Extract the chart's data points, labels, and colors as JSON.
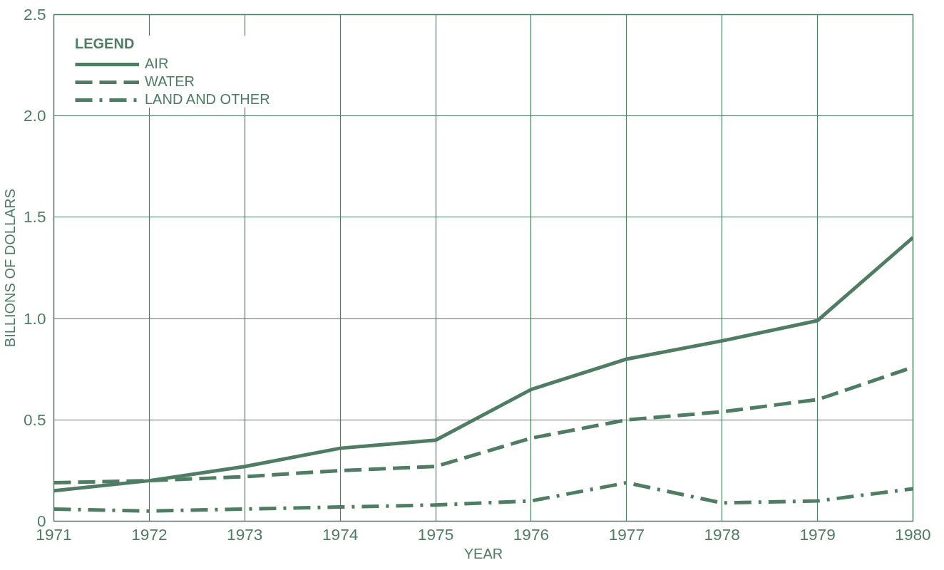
{
  "chart_data": {
    "type": "line",
    "xlabel": "YEAR",
    "ylabel": "BILLIONS OF DOLLARS",
    "legend_title": "LEGEND",
    "x": [
      1971,
      1972,
      1973,
      1974,
      1975,
      1976,
      1977,
      1978,
      1979,
      1980
    ],
    "series": [
      {
        "name": "AIR",
        "color": "#4f7d63",
        "line_style": "solid",
        "values": [
          0.15,
          0.2,
          0.27,
          0.36,
          0.4,
          0.65,
          0.8,
          0.89,
          0.99,
          1.4
        ]
      },
      {
        "name": "WATER",
        "color": "#4f7d63",
        "line_style": "dashed",
        "values": [
          0.19,
          0.2,
          0.22,
          0.25,
          0.27,
          0.41,
          0.5,
          0.54,
          0.6,
          0.76
        ]
      },
      {
        "name": "LAND AND OTHER",
        "color": "#4f7d63",
        "line_style": "dashdot",
        "values": [
          0.06,
          0.05,
          0.06,
          0.07,
          0.08,
          0.1,
          0.19,
          0.09,
          0.1,
          0.16
        ]
      }
    ],
    "xlim": [
      1971,
      1980
    ],
    "ylim": [
      0,
      2.5
    ],
    "xticks": [
      1971,
      1972,
      1973,
      1974,
      1975,
      1976,
      1977,
      1978,
      1979,
      1980
    ],
    "yticks": [
      0,
      {
        "value": 0.5,
        "label": "0.5"
      },
      {
        "value": 1.0,
        "label": "1.0"
      },
      {
        "value": 1.5,
        "label": "1.5"
      },
      {
        "value": 2.0,
        "label": "2.0"
      },
      {
        "value": 2.5,
        "label": "2.5"
      }
    ],
    "grid": true,
    "legend": "top left",
    "marker": "none"
  }
}
